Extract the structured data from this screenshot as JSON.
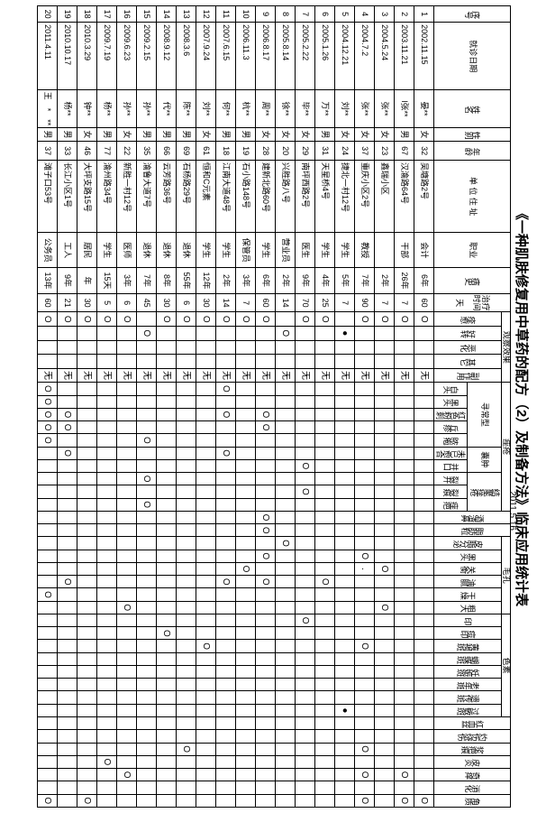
{
  "title": "《一种肌肤修复用中草药的配方（2）及制备方法》临床应用统计表",
  "date": "2011.5.16",
  "header": {
    "seq": "序号",
    "visit_date": "就诊日期",
    "name": "姓名",
    "sex": "性别",
    "age": "年龄",
    "addr": "单 位 住 址",
    "occ": "职业",
    "history": "病史",
    "dur_top": "治疗",
    "dur_mid": "时间",
    "dur_unit": "天",
    "effect_group": "观察效果",
    "effect": [
      "痊愈",
      "好转",
      "恶化",
      "其它",
      "副作用"
    ],
    "acne_group": "痤疮",
    "acne_sub1": "寻常型",
    "acne_sub2": "囊肿",
    "acne_sub3": "结聚痤疮",
    "acne_cols": [
      "白头",
      "黑头",
      "红色粉刺",
      "丘疹",
      "脓疱",
      "未已愈合",
      "并口",
      "裂开",
      "裂痕",
      "痤疤"
    ],
    "comedo": [
      "酒渣鼻",
      "脂肪粒"
    ],
    "pore_group": "毛孔",
    "pore": [
      "皮脂分泌",
      "黑头",
      "关衡",
      "油腻",
      "干燥",
      "粗大"
    ],
    "pig_group": "色素",
    "pig": [
      "印",
      "痘印",
      "黄褐斑",
      "蝴蝶斑",
      "妊娠斑",
      "老年斑",
      "遗传斑",
      "过敏斑"
    ],
    "other": [
      "红血丝",
      "灼伤烧伤",
      "浆疤痕",
      "皮炎",
      "奇痒",
      "消化",
      "角质"
    ]
  },
  "rows": [
    {
      "n": "1",
      "d": "2002.11.15",
      "nm": "晏**",
      "s": "女",
      "a": "32",
      "ad": "吴塘路2号",
      "oc": "会计",
      "h": "6年",
      "t": "60",
      "eff": [
        "O",
        "",
        "",
        "",
        "无"
      ],
      "c": [
        "",
        "",
        "",
        "",
        "",
        "",
        "",
        "",
        "",
        "",
        "",
        "",
        "",
        "",
        "",
        "",
        "",
        "",
        "",
        "",
        "",
        "",
        "",
        "",
        "",
        "",
        "",
        "",
        "",
        "",
        "",
        "",
        "O"
      ]
    },
    {
      "n": "2",
      "d": "2003.11.21",
      "nm": "l张**",
      "s": "男",
      "a": "67",
      "ad": "汉渝路64号",
      "oc": "干部",
      "h": "26年",
      "t": "7",
      "eff": [
        "O",
        "",
        "",
        "",
        "无"
      ],
      "c": [
        "",
        "",
        "",
        "",
        "",
        "",
        "",
        "",
        "",
        "",
        "",
        "",
        "",
        "",
        "",
        "",
        "",
        "",
        "",
        "",
        "",
        "",
        "",
        "",
        "",
        "",
        "",
        "",
        "",
        "",
        "O",
        "",
        "O"
      ]
    },
    {
      "n": "3",
      "d": "2004.5.24",
      "nm": "张**",
      "s": "女",
      "a": "23",
      "ad": "鑫瑞小区",
      "oc": "",
      "h": "2年",
      "t": "7",
      "eff": [
        "O",
        "",
        "",
        "",
        "无"
      ],
      "c": [
        "",
        "",
        "",
        "",
        "",
        "",
        "",
        "",
        "",
        "",
        "",
        "",
        "",
        "",
        "O",
        "",
        "",
        "O",
        "",
        "",
        "",
        "",
        "",
        "",
        "",
        "",
        "",
        "",
        "",
        "",
        "",
        "",
        ""
      ]
    },
    {
      "n": "4",
      "d": "2004.7.2",
      "nm": "张**",
      "s": "女",
      "a": "37",
      "ad": "重庆小区2号",
      "oc": "教授",
      "h": "7年",
      "t": "90",
      "eff": [
        "O",
        "",
        "",
        "",
        "无"
      ],
      "c": [
        "",
        "",
        "",
        "",
        "",
        "",
        "",
        "",
        "",
        "",
        "",
        "",
        "",
        "O",
        ".",
        "",
        "",
        "",
        "",
        "",
        "O",
        "",
        "",
        "",
        "",
        "",
        "",
        "",
        "O",
        "",
        "O",
        "",
        "O"
      ]
    },
    {
      "n": "5",
      "d": "2004.12.21",
      "nm": "刘**",
      "s": "女",
      "a": "24",
      "ad": "捷北一村12号",
      "oc": "学生",
      "h": "5年",
      "t": "7",
      "eff": [
        "",
        "●",
        "",
        "",
        "无"
      ],
      "c": [
        "",
        "",
        "",
        "",
        "",
        "",
        "",
        "",
        "",
        "",
        "",
        "",
        "",
        "",
        "",
        "",
        "",
        "",
        "",
        "",
        "",
        "",
        "",
        "",
        "",
        "●",
        "",
        "",
        "",
        "",
        "",
        "",
        ""
      ]
    },
    {
      "n": "6",
      "d": "2005.1.26",
      "nm": "万**",
      "s": "男",
      "a": "31",
      "ad": "天星桥4号",
      "oc": "学生",
      "h": "4年",
      "t": "25",
      "eff": [
        "O",
        "",
        "",
        "",
        "无"
      ],
      "c": [
        "",
        "",
        "",
        "",
        "",
        "",
        "",
        "",
        "",
        "",
        "",
        "",
        "",
        "",
        "",
        "O",
        "",
        "",
        "",
        "",
        "",
        "",
        "",
        "",
        "",
        "",
        "",
        "",
        "",
        "",
        "",
        "",
        ""
      ]
    },
    {
      "n": "7",
      "d": "2005.2.22",
      "nm": "毕**",
      "s": "女",
      "a": "29",
      "ad": "南坪西路2号",
      "oc": "医生",
      "h": "9年",
      "t": "70",
      "eff": [
        "O",
        "",
        "",
        "",
        "无"
      ],
      "c": [
        "",
        "",
        "",
        "",
        "",
        "",
        "O",
        "",
        "O",
        "",
        "",
        "",
        "",
        "",
        "",
        "",
        "",
        "",
        "O",
        "",
        "",
        "",
        "",
        "",
        "",
        "",
        "",
        "",
        "",
        "",
        "",
        "",
        ""
      ]
    },
    {
      "n": "8",
      "d": "2005.8.14",
      "nm": "徐**",
      "s": "女",
      "a": "20",
      "ad": "兴胜路八号",
      "oc": "营业员",
      "h": "2年",
      "t": "14",
      "eff": [
        "",
        "O",
        "",
        "",
        "无"
      ],
      "c": [
        "",
        "",
        "",
        "",
        "",
        "",
        "",
        "",
        "",
        "",
        "",
        "",
        "O",
        "",
        "",
        "",
        "",
        "",
        "",
        "",
        "",
        "",
        "",
        "",
        "",
        "",
        "",
        "",
        "",
        "",
        "",
        "",
        ""
      ]
    },
    {
      "n": "9",
      "d": "2006.8.17",
      "nm": "周**",
      "s": "女",
      "a": "28",
      "ad": "建新北路60号",
      "oc": "学生",
      "h": "6年",
      "t": "60",
      "eff": [
        "O",
        "",
        "",
        "",
        "无"
      ],
      "c": [
        "",
        "",
        "O",
        "O",
        "",
        "",
        "",
        "",
        "",
        "",
        "O",
        "O",
        "",
        "O",
        "",
        "O",
        "",
        "",
        "",
        "",
        "",
        "",
        "",
        "",
        "",
        "",
        "",
        "",
        "",
        "",
        "",
        "",
        ""
      ]
    },
    {
      "n": "10",
      "d": "2006.11.3",
      "nm": "杭**",
      "s": "男",
      "a": "19",
      "ad": "石小路148号",
      "oc": "保管员",
      "h": "3年",
      "t": "7",
      "eff": [
        "O",
        "",
        "",
        "",
        "无"
      ],
      "c": [
        "",
        "",
        "",
        "",
        "",
        "",
        "",
        "",
        "",
        "",
        "",
        "",
        "",
        "",
        "O",
        "",
        "",
        "",
        "",
        "",
        "",
        "",
        "",
        "",
        "",
        "",
        "",
        "",
        "",
        "",
        "",
        "",
        ""
      ]
    },
    {
      "n": "11",
      "d": "2007.6.15",
      "nm": "何**",
      "s": "男",
      "a": "18",
      "ad": "江南大道48号",
      "oc": "学生",
      "h": "2年",
      "t": "14",
      "eff": [
        "O",
        "",
        "",
        "",
        "无"
      ],
      "c": [
        "O",
        "",
        "O",
        "",
        "",
        "O",
        "",
        "",
        "",
        "",
        "",
        "",
        "",
        "",
        "",
        "O",
        "",
        "",
        "",
        "",
        "",
        "",
        "",
        "",
        "",
        "",
        "",
        "",
        "",
        "",
        "",
        "",
        ""
      ]
    },
    {
      "n": "12",
      "d": "2007.9.24",
      "nm": "刘**",
      "s": "女",
      "a": "61",
      "ad": "恒和C元素",
      "oc": "学生",
      "h": "12年",
      "t": "30",
      "eff": [
        "O",
        "",
        "",
        "",
        "无"
      ],
      "c": [
        "",
        "",
        "",
        "",
        "",
        "",
        "",
        "",
        "",
        "",
        "",
        "",
        "",
        "",
        "",
        "",
        "",
        "",
        "",
        "",
        "O",
        "",
        "",
        "",
        "",
        "",
        "",
        "",
        "",
        "",
        "",
        "",
        ""
      ]
    },
    {
      "n": "13",
      "d": "2008.3.6",
      "nm": "陈**",
      "s": "男",
      "a": "69",
      "ad": "石杨路29号",
      "oc": "退休",
      "h": "55年",
      "t": "6",
      "eff": [
        "O",
        "",
        "",
        "",
        "无"
      ],
      "c": [
        "",
        "",
        "",
        "",
        "",
        "",
        "",
        "",
        "",
        "",
        "",
        "",
        "",
        "",
        "",
        "",
        "",
        "",
        "",
        "",
        "",
        "",
        "",
        "",
        "",
        "",
        "",
        "",
        "O",
        "",
        "",
        "",
        ""
      ]
    },
    {
      "n": "14",
      "d": "2008.9.12",
      "nm": "代**",
      "s": "男",
      "a": "66",
      "ad": "云芳路36号",
      "oc": "退休",
      "h": "8年",
      "t": "30",
      "eff": [
        "O",
        "",
        "",
        "",
        "无"
      ],
      "c": [
        "",
        "",
        "",
        "",
        "",
        "",
        "",
        "",
        "",
        "",
        "",
        "",
        "",
        "",
        "",
        "",
        "",
        "",
        "",
        "O",
        "",
        "",
        "",
        "",
        "",
        "",
        "",
        "",
        "",
        "",
        "",
        "",
        ""
      ]
    },
    {
      "n": "15",
      "d": "2009.2.15",
      "nm": "孙**",
      "s": "男",
      "a": "35",
      "ad": "渝鲁大道7号",
      "oc": "退休",
      "h": "7年",
      "t": "45",
      "eff": [
        "",
        "O",
        "",
        "",
        "无"
      ],
      "c": [
        "",
        "",
        "",
        "",
        "O",
        "",
        "",
        "O",
        "",
        "O",
        "",
        "",
        "",
        "",
        "",
        "",
        "",
        "",
        "",
        "",
        "",
        "",
        "",
        "",
        "",
        "",
        "",
        "",
        "",
        "",
        "",
        "",
        ""
      ]
    },
    {
      "n": "16",
      "d": "2009.6.23",
      "nm": "孙**",
      "s": "女",
      "a": "22",
      "ad": "新胜一村12号",
      "oc": "医师",
      "h": "3年",
      "t": "6",
      "eff": [
        "O",
        "",
        "",
        "",
        "无"
      ],
      "c": [
        "",
        "",
        "",
        "",
        "",
        "",
        "",
        "",
        "",
        "",
        "",
        "",
        "",
        "",
        "",
        "",
        "",
        "O",
        "",
        "",
        "",
        "",
        "",
        "",
        "",
        "",
        "",
        "",
        "",
        "",
        "O",
        "",
        ""
      ]
    },
    {
      "n": "17",
      "d": "2009.7.19",
      "nm": "杨**",
      "s": "男",
      "a": "77",
      "ad": "渝州路34号",
      "oc": "学生",
      "h": "15天",
      "t": "5",
      "eff": [
        "O",
        "",
        "",
        "",
        "无"
      ],
      "c": [
        "",
        "",
        "",
        "",
        "",
        "",
        "",
        "",
        "",
        "",
        "",
        "",
        "",
        "",
        "",
        "",
        "",
        "",
        "",
        "",
        "",
        "",
        "",
        "",
        "",
        "",
        "",
        "",
        "",
        "O",
        "",
        "",
        ""
      ]
    },
    {
      "n": "18",
      "d": "2010.3.29",
      "nm": "钟**",
      "s": "女",
      "a": "46",
      "ad": "大坪支路15号",
      "oc": "居民",
      "h": "年",
      "t": "30",
      "eff": [
        "O",
        "",
        "",
        "",
        "无"
      ],
      "c": [
        "",
        "",
        "",
        "",
        "",
        "",
        "",
        "",
        "",
        "",
        "",
        "",
        "",
        "",
        "",
        "",
        "",
        "",
        "",
        "",
        "",
        "",
        "",
        "",
        "",
        "",
        "",
        "",
        "",
        "",
        "",
        "",
        "O"
      ]
    },
    {
      "n": "19",
      "d": "2010.10.17",
      "nm": "杨**",
      "s": "男",
      "a": "33",
      "ad": "长江小区1号",
      "oc": "工人",
      "h": "9年",
      "t": "21",
      "eff": [
        "O",
        "",
        "",
        "",
        "无"
      ],
      "c": [
        "",
        "",
        "O",
        "O",
        "",
        "O",
        "",
        "",
        "",
        "",
        "",
        "",
        "",
        "",
        "",
        "O",
        "",
        "",
        "",
        "",
        "",
        "",
        "",
        "",
        "",
        "",
        "",
        "",
        "",
        "",
        "",
        "",
        ""
      ]
    },
    {
      "n": "20",
      "d": "2011.4.11",
      "nm": "王　*　**",
      "s": "男",
      "a": "37",
      "ad": "滩子口53号",
      "oc": "公务员",
      "h": "13年",
      "t": "60",
      "eff": [
        "O",
        "",
        "",
        "",
        "无"
      ],
      "c": [
        "O",
        "O",
        "O",
        "O",
        "O",
        "",
        "",
        "",
        "",
        "",
        "",
        "",
        "",
        "",
        "",
        "",
        "O",
        "",
        "",
        "",
        "",
        "",
        "",
        "",
        "",
        "",
        "",
        "",
        "",
        "",
        "",
        "",
        "O"
      ]
    }
  ]
}
